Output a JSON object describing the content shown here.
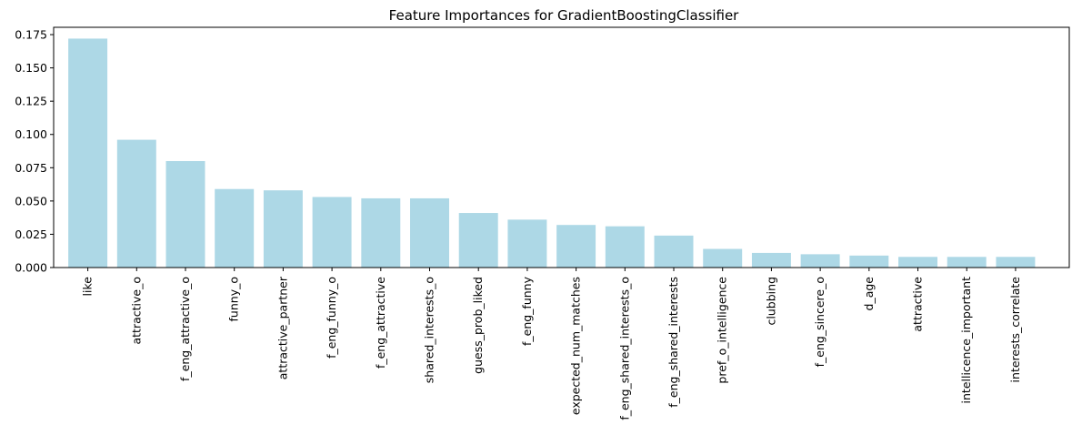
{
  "chart_data": {
    "type": "bar",
    "title": "Feature Importances for GradientBoostingClassifier",
    "xlabel": "",
    "ylabel": "",
    "categories": [
      "like",
      "attractive_o",
      "f_eng_attractive_o",
      "funny_o",
      "attractive_partner",
      "f_eng_funny_o",
      "f_eng_attractive",
      "shared_interests_o",
      "guess_prob_liked",
      "f_eng_funny",
      "expected_num_matches",
      "f_eng_shared_interests_o",
      "f_eng_shared_interests",
      "pref_o_intelligence",
      "clubbing",
      "f_eng_sincere_o",
      "d_age",
      "attractive",
      "intellicence_important",
      "interests_correlate"
    ],
    "values": [
      0.172,
      0.096,
      0.08,
      0.059,
      0.058,
      0.053,
      0.052,
      0.052,
      0.041,
      0.036,
      0.032,
      0.031,
      0.024,
      0.014,
      0.011,
      0.01,
      0.009,
      0.008,
      0.008,
      0.008
    ],
    "ylim": [
      0,
      0.1805
    ],
    "yticks": [
      "0.000",
      "0.025",
      "0.050",
      "0.075",
      "0.100",
      "0.125",
      "0.150",
      "0.175"
    ],
    "grid": false,
    "bar_color": "#add8e6"
  }
}
